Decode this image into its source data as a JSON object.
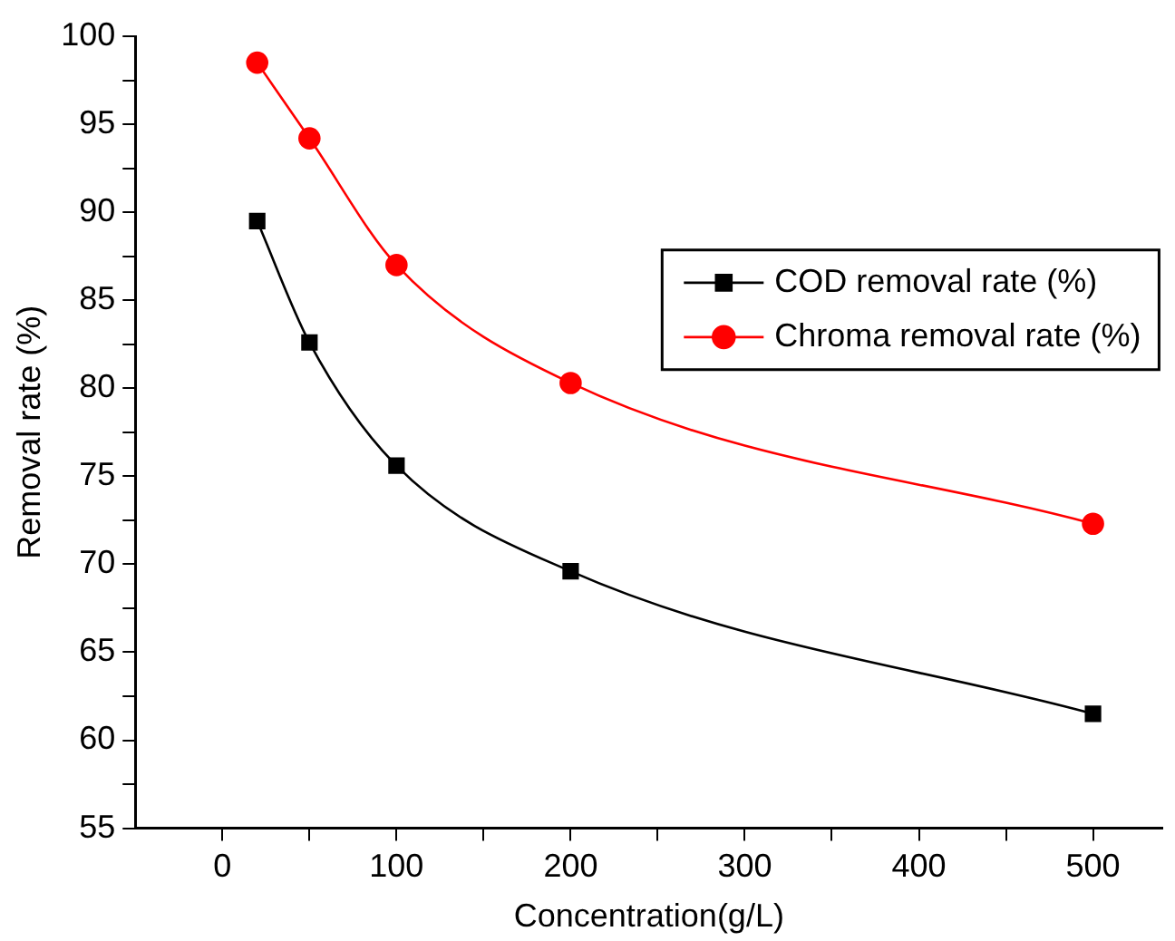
{
  "chart_data": {
    "type": "line",
    "xlabel": "Concentration(g/L)",
    "ylabel": "Removal rate (%)",
    "x": [
      20,
      50,
      100,
      200,
      500
    ],
    "series": [
      {
        "name": "COD removal rate (%)",
        "color": "#000000",
        "marker": "square",
        "values": [
          89.5,
          82.6,
          75.6,
          69.6,
          61.5
        ]
      },
      {
        "name": "Chroma removal rate (%)",
        "color": "#ff0000",
        "marker": "circle",
        "values": [
          98.5,
          94.2,
          87.0,
          80.3,
          72.3
        ]
      }
    ],
    "xlim": [
      -50,
      540
    ],
    "xticks": [
      0,
      {
        "value": 50,
        "label": null
      },
      100,
      {
        "value": 150,
        "label": null
      },
      200,
      {
        "value": 250,
        "label": null
      },
      300,
      {
        "value": 350,
        "label": null
      },
      400,
      {
        "value": 450,
        "label": null
      },
      500
    ],
    "ylim": [
      55,
      100
    ],
    "yticks": [
      55,
      {
        "value": 57.5,
        "label": null
      },
      60,
      {
        "value": 62.5,
        "label": null
      },
      65,
      {
        "value": 67.5,
        "label": null
      },
      70,
      {
        "value": 72.5,
        "label": null
      },
      75,
      {
        "value": 77.5,
        "label": null
      },
      80,
      {
        "value": 82.5,
        "label": null
      },
      85,
      {
        "value": 87.5,
        "label": null
      },
      90,
      {
        "value": 92.5,
        "label": null
      },
      95,
      {
        "value": 97.5,
        "label": null
      },
      100
    ],
    "grid": false,
    "legend": "right",
    "line_style": "solid"
  }
}
